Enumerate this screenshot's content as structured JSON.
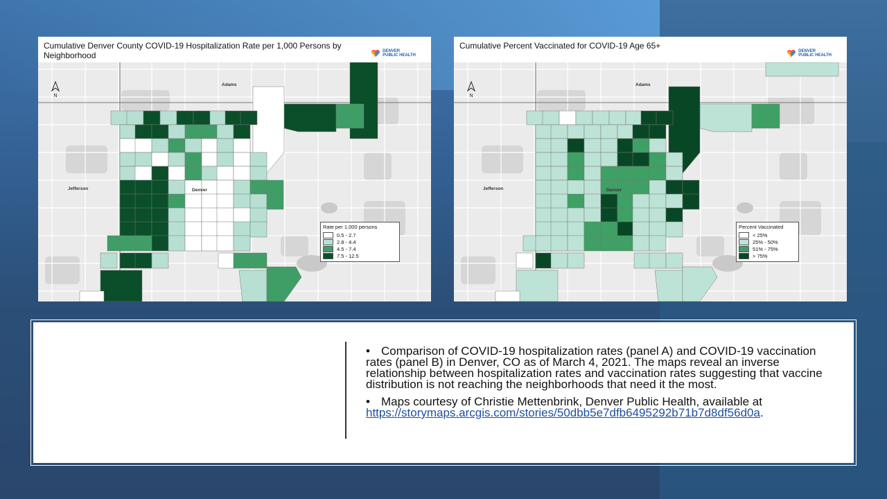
{
  "colors": {
    "none": "#ffffff",
    "light": "#b7e0d2",
    "mid": "#3f9e66",
    "dark": "#0a4e2a",
    "unvaccinated": "#ffffff",
    "base": "#e9e9e9",
    "vac_25_50": "#bde3d6",
    "vac_51_75": "#3ea064",
    "vac_75_plus": "#084725"
  },
  "panel_a": {
    "title": "Cumulative Denver County COVID-19 Hospitalization Rate per 1,000 Persons by Neighborhood",
    "logo_line1": "DENVER",
    "logo_line2": "PUBLIC HEALTH",
    "north_label": "N",
    "labels": {
      "adams": "Adams",
      "jefferson": "Jefferson",
      "denver": "Denver"
    },
    "legend": {
      "title": "Rate per 1,000 persons",
      "items": [
        "0.5 - 2.7",
        "2.8 - 4.4",
        "4.5 - 7.4",
        "7.5 - 12.5"
      ]
    }
  },
  "panel_b": {
    "title": "Cumulative Percent Vaccinated for COVID-19 Age 65+",
    "logo_line1": "DENVER",
    "logo_line2": "PUBLIC HEALTH",
    "north_label": "N",
    "labels": {
      "adams": "Adams",
      "jefferson": "Jefferson",
      "denver": "Denver"
    },
    "legend": {
      "title": "Percent Vaccinated",
      "items": [
        "< 25%",
        "25% - 50%",
        "51% - 75%",
        "> 75%"
      ]
    }
  },
  "caption": {
    "bullet1": "Comparison of COVID-19 hospitalization rates (panel A) and COVID-19 vaccination rates (panel B) in Denver, CO as of March 4, 2021. The maps reveal an inverse relationship between hospitalization rates and vaccination rates suggesting that vaccine distribution is not reaching the neighborhoods that need it the most.",
    "bullet2_text": "Maps courtesy of Christie Mettenbrink, Denver Public Health, available at",
    "link": "https://storymaps.arcgis.com/stories/50dbb5e7dfb6495292b71b7d8df56d0a",
    "bullet2_end": ".",
    "bullet_char": "•"
  }
}
